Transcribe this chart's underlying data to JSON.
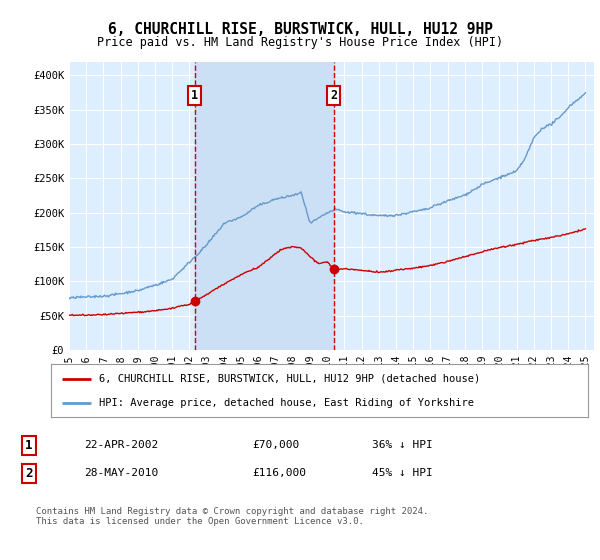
{
  "title": "6, CHURCHILL RISE, BURSTWICK, HULL, HU12 9HP",
  "subtitle": "Price paid vs. HM Land Registry's House Price Index (HPI)",
  "background_color": "#ffffff",
  "plot_bg_color": "#ddeeff",
  "shade_color": "#cce0f5",
  "grid_color": "#ffffff",
  "ylim": [
    0,
    420000
  ],
  "yticks": [
    0,
    50000,
    100000,
    150000,
    200000,
    250000,
    300000,
    350000,
    400000
  ],
  "ytick_labels": [
    "£0",
    "£50K",
    "£100K",
    "£150K",
    "£200K",
    "£250K",
    "£300K",
    "£350K",
    "£400K"
  ],
  "sale1_year": 2002.31,
  "sale1_val": 70000,
  "sale2_year": 2010.39,
  "sale2_val": 116000,
  "sale_color": "#cc0000",
  "hpi_color": "#6699cc",
  "vline_color": "#cc0000",
  "legend_label_red": "6, CHURCHILL RISE, BURSTWICK, HULL, HU12 9HP (detached house)",
  "legend_label_blue": "HPI: Average price, detached house, East Riding of Yorkshire",
  "table_row1": [
    "1",
    "22-APR-2002",
    "£70,000",
    "36% ↓ HPI"
  ],
  "table_row2": [
    "2",
    "28-MAY-2010",
    "£116,000",
    "45% ↓ HPI"
  ],
  "footer": "Contains HM Land Registry data © Crown copyright and database right 2024.\nThis data is licensed under the Open Government Licence v3.0.",
  "x_start_year": 1995,
  "x_end_year": 2025
}
